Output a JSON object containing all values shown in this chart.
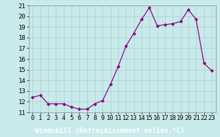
{
  "x": [
    0,
    1,
    2,
    3,
    4,
    5,
    6,
    7,
    8,
    9,
    10,
    11,
    12,
    13,
    14,
    15,
    16,
    17,
    18,
    19,
    20,
    21,
    22,
    23
  ],
  "y": [
    12.4,
    12.6,
    11.8,
    11.8,
    11.8,
    11.5,
    11.3,
    11.3,
    11.8,
    12.1,
    13.6,
    15.3,
    17.2,
    18.4,
    19.7,
    20.8,
    19.1,
    19.2,
    19.3,
    19.5,
    20.6,
    19.7,
    15.6,
    14.9
  ],
  "bg_color": "#c8eaea",
  "line_color": "#880088",
  "marker_color": "#880088",
  "grid_color": "#aacccc",
  "xlabel": "Windchill (Refroidissement éolien,°C)",
  "xlabel_bg": "#7b3f7b",
  "xlabel_fg": "#ffffff",
  "ylim": [
    11,
    21
  ],
  "xlim_min": -0.5,
  "xlim_max": 23.5,
  "yticks": [
    11,
    12,
    13,
    14,
    15,
    16,
    17,
    18,
    19,
    20,
    21
  ],
  "xticks": [
    0,
    1,
    2,
    3,
    4,
    5,
    6,
    7,
    8,
    9,
    10,
    11,
    12,
    13,
    14,
    15,
    16,
    17,
    18,
    19,
    20,
    21,
    22,
    23
  ],
  "tick_fontsize": 6.5,
  "xlabel_fontsize": 7.0
}
